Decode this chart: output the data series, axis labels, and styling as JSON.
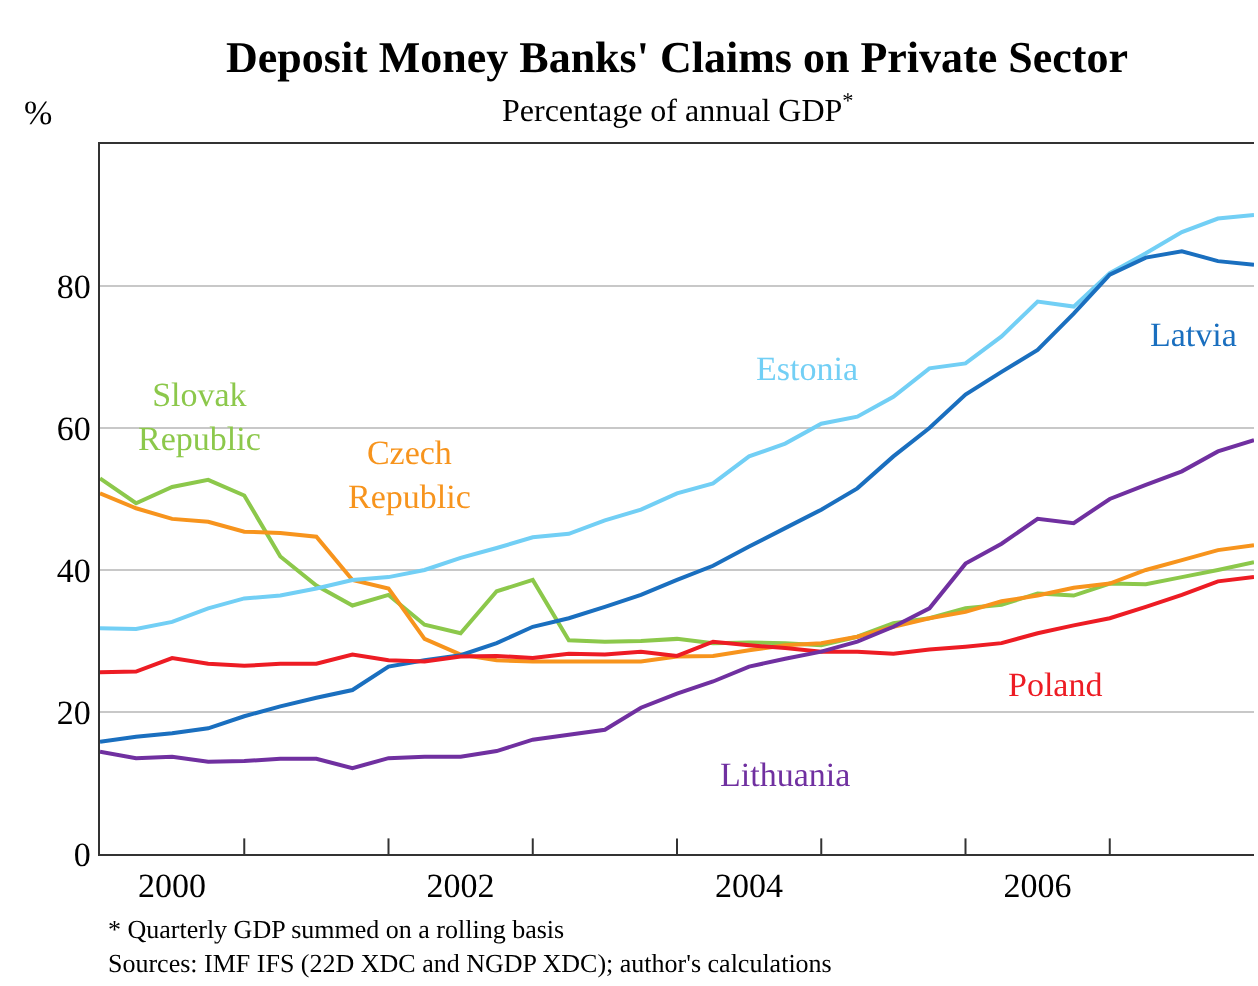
{
  "chart_data": {
    "type": "line",
    "title": "Deposit Money Banks' Claims on Private Sector",
    "subtitle": "Percentage of annual GDP$^{*}$",
    "ylabel": "%",
    "x": [
      2000,
      2000.25,
      2000.5,
      2000.75,
      2001,
      2001.25,
      2001.5,
      2001.75,
      2002,
      2002.25,
      2002.5,
      2002.75,
      2003,
      2003.25,
      2003.5,
      2003.75,
      2004,
      2004.25,
      2004.5,
      2004.75,
      2005,
      2005.25,
      2005.5,
      2005.75,
      2006,
      2006.25,
      2006.5,
      2006.75,
      2007,
      2007.25,
      2007.5,
      2007.75,
      2008
    ],
    "series": [
      {
        "name": "Slovak Republic",
        "color": "#8cc84b",
        "values": [
          52.9,
          49.4,
          51.7,
          52.7,
          50.5,
          41.9,
          37.8,
          35,
          36.5,
          32.3,
          31.1,
          37,
          38.6,
          30.1,
          29.9,
          30,
          30.3,
          29.7,
          29.8,
          29.7,
          29.4,
          30.6,
          32.5,
          33.2,
          34.6,
          35.1,
          36.7,
          36.4,
          38.1,
          38,
          39,
          40,
          41.1
        ]
      },
      {
        "name": "Czech Republic",
        "color": "#f7941d",
        "values": [
          50.8,
          48.7,
          47.2,
          46.8,
          45.4,
          45.2,
          44.7,
          38.6,
          37.4,
          30.3,
          28.1,
          27.3,
          27.1,
          27.1,
          27.1,
          27.1,
          27.8,
          27.9,
          28.7,
          29.4,
          29.7,
          30.6,
          32,
          33.2,
          34.1,
          35.6,
          36.4,
          37.5,
          38.1,
          40,
          41.4,
          42.8,
          43.5
        ]
      },
      {
        "name": "Estonia",
        "color": "#72cff5",
        "values": [
          31.8,
          31.7,
          32.7,
          34.6,
          36,
          36.4,
          37.4,
          38.6,
          39,
          40,
          41.7,
          43.1,
          44.6,
          45.1,
          47,
          48.5,
          50.8,
          52.2,
          56,
          57.8,
          60.6,
          61.6,
          64.4,
          68.4,
          69.1,
          72.9,
          77.8,
          77.1,
          81.8,
          84.6,
          87.6,
          89.5,
          90
        ]
      },
      {
        "name": "Latvia",
        "color": "#1a6fbf",
        "values": [
          15.8,
          16.5,
          17,
          17.7,
          19.4,
          20.8,
          22,
          23.1,
          26.4,
          27.3,
          28,
          29.7,
          32,
          33.2,
          34.8,
          36.5,
          38.6,
          40.6,
          43.3,
          45.9,
          48.5,
          51.5,
          56,
          60,
          64.7,
          67.9,
          71,
          76.1,
          81.6,
          84,
          84.9,
          83.5,
          83
        ]
      },
      {
        "name": "Poland",
        "color": "#ed1c24",
        "values": [
          25.6,
          25.7,
          27.6,
          26.8,
          26.5,
          26.8,
          26.8,
          28.1,
          27.3,
          27.1,
          27.8,
          27.9,
          27.6,
          28.2,
          28.1,
          28.5,
          27.9,
          29.9,
          29.4,
          29,
          28.5,
          28.5,
          28.2,
          28.8,
          29.2,
          29.7,
          31.1,
          32.2,
          33.2,
          34.8,
          36.5,
          38.4,
          39
        ]
      },
      {
        "name": "Lithuania",
        "color": "#7030a0",
        "values": [
          14.4,
          13.5,
          13.7,
          13,
          13.1,
          13.4,
          13.4,
          12.1,
          13.5,
          13.7,
          13.7,
          14.5,
          16.1,
          16.8,
          17.5,
          20.6,
          22.6,
          24.3,
          26.4,
          27.5,
          28.5,
          29.9,
          32,
          34.6,
          40.9,
          43.7,
          47.2,
          46.6,
          50,
          52,
          53.9,
          56.7,
          58.3
        ]
      }
    ],
    "xlim": [
      2000,
      2008
    ],
    "xticks": [
      {
        "value": 2000.5,
        "label": "2000"
      },
      {
        "value": 2001,
        "label": null
      },
      {
        "value": 2002,
        "label": null
      },
      {
        "value": 2002.5,
        "label": "2002"
      },
      {
        "value": 2003,
        "label": null
      },
      {
        "value": 2004,
        "label": null
      },
      {
        "value": 2004.5,
        "label": "2004"
      },
      {
        "value": 2005,
        "label": null
      },
      {
        "value": 2006,
        "label": null
      },
      {
        "value": 2006.5,
        "label": "2006"
      },
      {
        "value": 2007,
        "label": null
      }
    ],
    "ylim": [
      0,
      100
    ],
    "yticks": [
      0,
      20,
      40,
      60,
      80
    ],
    "grid": "y",
    "legend": false,
    "marker": "none",
    "line_style": "solid",
    "annotations": [
      "* Quarterly GDP summed on a rolling basis",
      "Sources: IMF IFS (22D XDC and NGDP XDC); author's calculations"
    ]
  }
}
